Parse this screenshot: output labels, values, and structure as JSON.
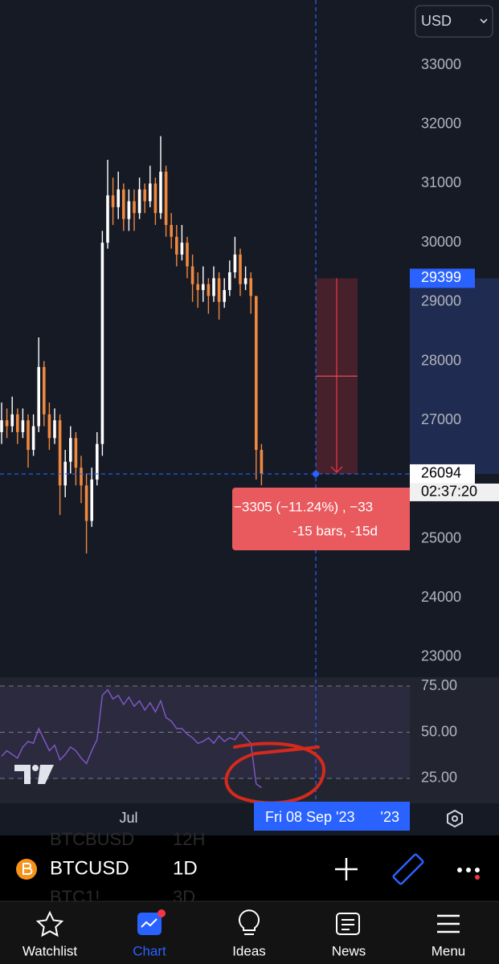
{
  "header": {
    "currency": "USD"
  },
  "price_chart": {
    "ylim": [
      22660,
      34100
    ],
    "yticks": [
      33000,
      32000,
      31000,
      30000,
      29000,
      28000,
      27000,
      26000,
      25000,
      24000,
      23000
    ],
    "up_color": "#ffffff",
    "down_color": "#f0883e",
    "candles": [
      [
        26800,
        27300,
        26600,
        27000
      ],
      [
        27000,
        27200,
        26700,
        26900
      ],
      [
        26900,
        27400,
        26800,
        27100
      ],
      [
        27100,
        27200,
        26600,
        26800
      ],
      [
        26800,
        27200,
        26700,
        27000
      ],
      [
        27000,
        27100,
        26200,
        26500
      ],
      [
        26500,
        27100,
        26400,
        26900
      ],
      [
        26900,
        28400,
        26800,
        27900
      ],
      [
        27900,
        28000,
        26900,
        27100
      ],
      [
        27100,
        27300,
        26500,
        26700
      ],
      [
        26700,
        27200,
        26600,
        27000
      ],
      [
        27000,
        27100,
        25400,
        25900
      ],
      [
        25900,
        26500,
        25700,
        26300
      ],
      [
        26300,
        26900,
        26100,
        26700
      ],
      [
        26700,
        26800,
        25900,
        26200
      ],
      [
        26200,
        26400,
        25600,
        25900
      ],
      [
        25900,
        26100,
        24750,
        25300
      ],
      [
        25300,
        26200,
        25200,
        26000
      ],
      [
        26000,
        26800,
        25900,
        26600
      ],
      [
        26600,
        30200,
        26400,
        30000
      ],
      [
        30000,
        31400,
        29900,
        30800
      ],
      [
        30800,
        31100,
        30300,
        30600
      ],
      [
        30600,
        31200,
        30400,
        30900
      ],
      [
        30900,
        31000,
        30200,
        30400
      ],
      [
        30400,
        30900,
        30200,
        30700
      ],
      [
        30700,
        30900,
        30200,
        30500
      ],
      [
        30500,
        31100,
        30400,
        30900
      ],
      [
        30900,
        31000,
        30500,
        30700
      ],
      [
        30700,
        31300,
        30600,
        31000
      ],
      [
        31000,
        31100,
        30300,
        30500
      ],
      [
        30500,
        31800,
        30400,
        31200
      ],
      [
        31200,
        31300,
        30100,
        30300
      ],
      [
        30300,
        30500,
        29900,
        30100
      ],
      [
        30100,
        30300,
        29600,
        29800
      ],
      [
        29800,
        30300,
        29700,
        30000
      ],
      [
        30000,
        30100,
        29400,
        29600
      ],
      [
        29600,
        29800,
        29000,
        29300
      ],
      [
        29300,
        29500,
        28900,
        29200
      ],
      [
        29200,
        29600,
        29000,
        29300
      ],
      [
        29300,
        29400,
        28800,
        29100
      ],
      [
        29100,
        29600,
        29000,
        29400
      ],
      [
        29400,
        29500,
        28700,
        29000
      ],
      [
        29000,
        29400,
        28900,
        29200
      ],
      [
        29200,
        29700,
        29100,
        29500
      ],
      [
        29500,
        30100,
        29400,
        29800
      ],
      [
        29800,
        29900,
        29100,
        29300
      ],
      [
        29300,
        29600,
        29200,
        29400
      ],
      [
        29400,
        29500,
        28800,
        29100
      ],
      [
        29100,
        29100,
        26000,
        26500
      ],
      [
        26500,
        26600,
        25900,
        26100
      ]
    ],
    "price_labels": [
      29399,
      26094
    ],
    "countdown": "02:37:20",
    "measure_lines": [
      "−3305 (−11.24%) , −33",
      "-15 bars, -15d"
    ]
  },
  "rsi": {
    "ylim": [
      11.5,
      79.8
    ],
    "yticks": [
      {
        "value": 75,
        "label": "75.00"
      },
      {
        "value": 50,
        "label": "50.00"
      },
      {
        "value": 25,
        "label": "25.00"
      }
    ],
    "color": "#7e57c2",
    "values": [
      37,
      40,
      38,
      36,
      42,
      45,
      44,
      52,
      46,
      40,
      43,
      35,
      38,
      42,
      40,
      36,
      33,
      40,
      46,
      70,
      73,
      68,
      70,
      65,
      69,
      64,
      67,
      62,
      66,
      61,
      67,
      58,
      56,
      52,
      52,
      49,
      47,
      44,
      45,
      47,
      44,
      48,
      45,
      47,
      46,
      50,
      47,
      44,
      22,
      20
    ]
  },
  "time_axis": {
    "labels": [
      "Jul"
    ],
    "crosshair_date": "Fri 08 Sep '23",
    "tail": "'23"
  },
  "toolbar": {
    "symbol": "BTCUSD",
    "interval": "1D",
    "ghost_rows": [
      [
        "BTCBUSD",
        "12H"
      ],
      [
        "BTC1!",
        "3D"
      ]
    ]
  },
  "nav": [
    "Watchlist",
    "Chart",
    "Ideas",
    "News",
    "Menu"
  ]
}
